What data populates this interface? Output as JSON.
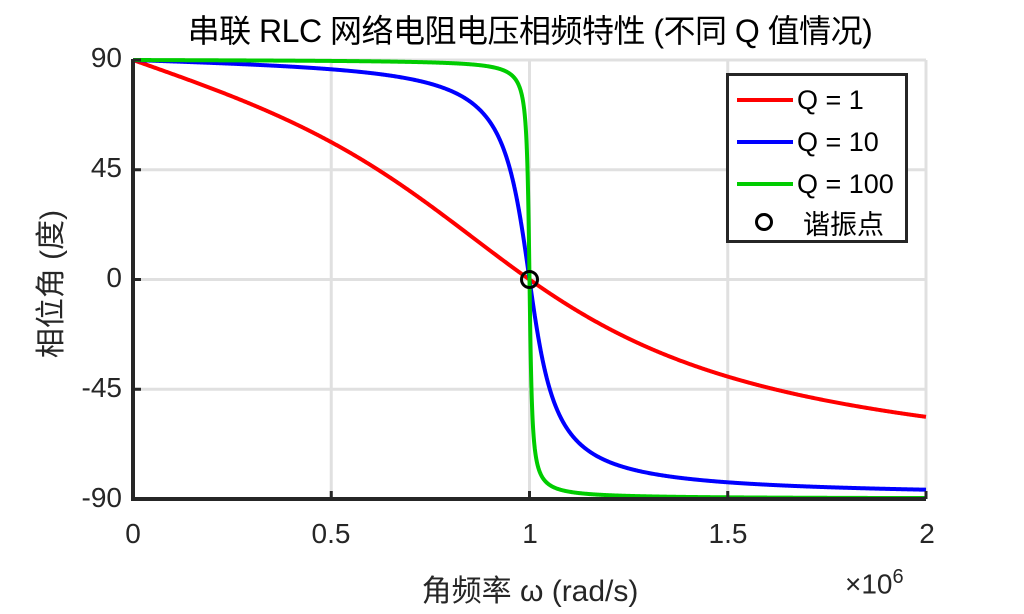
{
  "title": "串联 RLC 网络电阻电压相频特性 (不同 Q 值情况)",
  "xlabel": "角频率 ω (rad/s)",
  "ylabel": "相位角 (度)",
  "x_multiplier": "×10",
  "x_multiplier_exp": "6",
  "yticks": [
    "90",
    "45",
    "0",
    "-45",
    "-90"
  ],
  "xticks": [
    "0",
    "0.5",
    "1",
    "1.5",
    "2"
  ],
  "legend": [
    {
      "label": "Q = 1",
      "color": "#ff0000",
      "type": "line"
    },
    {
      "label": "Q = 10",
      "color": "#0000ff",
      "type": "line"
    },
    {
      "label": "Q = 100",
      "color": "#00cc00",
      "type": "line"
    },
    {
      "label": "谐振点",
      "color": "#000000",
      "type": "marker"
    }
  ],
  "chart_data": {
    "type": "line",
    "title": "串联 RLC 网络电阻电压相频特性 (不同 Q 值情况)",
    "xlabel": "角频率 ω (rad/s)",
    "ylabel": "相位角 (度)",
    "x_scale_note": "×10^6",
    "xlim": [
      0,
      2
    ],
    "ylim": [
      -90,
      90
    ],
    "xticks": [
      0,
      0.5,
      1,
      1.5,
      2
    ],
    "yticks": [
      -90,
      -45,
      0,
      45,
      90
    ],
    "grid": true,
    "legend_position": "northeast",
    "omega0": 1,
    "x": [
      0.01,
      0.25,
      0.5,
      0.75,
      0.9,
      1.0,
      1.1,
      1.25,
      1.5,
      1.75,
      2.0
    ],
    "series": [
      {
        "name": "Q = 1",
        "Q": 1,
        "color": "#ff0000",
        "values": [
          89.4,
          75.1,
          56.3,
          30.3,
          11.9,
          0,
          -10.9,
          -24.2,
          -39.8,
          -50.2,
          -56.3
        ]
      },
      {
        "name": "Q = 10",
        "Q": 10,
        "color": "#0000ff",
        "values": [
          89.9,
          88.5,
          86.2,
          80.2,
          62.2,
          0,
          -62.3,
          -77.6,
          -85.2,
          -87.5,
          -88.1
        ]
      },
      {
        "name": "Q = 100",
        "Q": 100,
        "color": "#00cc00",
        "values": [
          90.0,
          89.8,
          89.6,
          89.0,
          87.1,
          0,
          -87.3,
          -89.0,
          -89.5,
          -89.6,
          -89.7
        ]
      }
    ],
    "annotations": [
      {
        "label": "谐振点",
        "x": 1,
        "y": 0,
        "marker": "circle"
      }
    ]
  }
}
